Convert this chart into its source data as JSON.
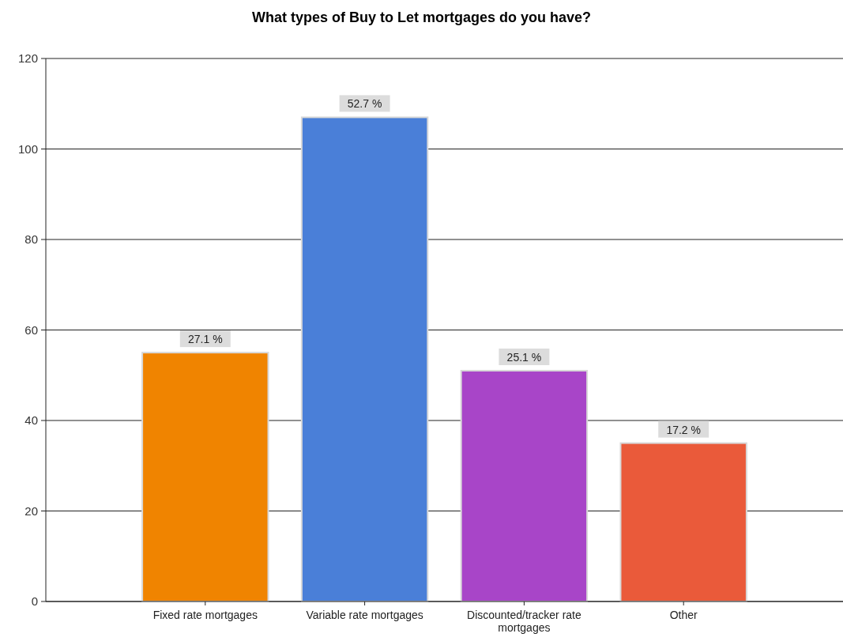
{
  "chart_data": {
    "type": "bar",
    "title": "What types of Buy to Let mortgages do you have?",
    "categories": [
      "Fixed rate mortgages",
      "Variable rate mortgages",
      "Discounted/tracker rate mortgages",
      "Other"
    ],
    "values": [
      55,
      107,
      51,
      35
    ],
    "colors": [
      "#f08400",
      "#4a7fd8",
      "#a845c8",
      "#ea5a3a"
    ],
    "annotations": [
      {
        "text": "27.1 %",
        "x": "Fixed rate mortgages",
        "y": 55
      },
      {
        "text": "52.7 %",
        "x": "Variable rate mortgages",
        "y": 107
      },
      {
        "text": "25.1 %",
        "x": "Discounted/tracker rate mortgages",
        "y": 51
      },
      {
        "text": "17.2 %",
        "x": "Other",
        "y": 35
      }
    ],
    "ylim": [
      0,
      120
    ],
    "yticks": [
      0,
      20,
      40,
      60,
      80,
      100,
      120
    ],
    "grid": "y"
  }
}
